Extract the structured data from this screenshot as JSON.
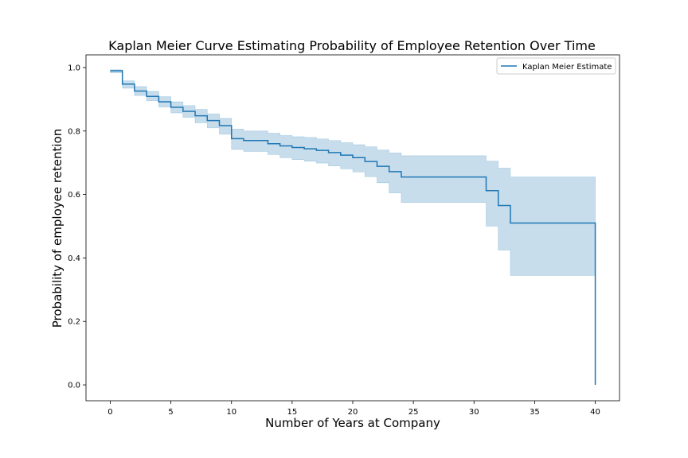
{
  "chart_data": {
    "type": "line",
    "title": "Kaplan Meier Curve Estimating Probability of Employee Retention Over Time",
    "xlabel": "Number of Years at Company",
    "ylabel": "Probability of employee retention",
    "xlim": [
      -2,
      42
    ],
    "ylim": [
      -0.05,
      1.04
    ],
    "x_ticks": [
      0,
      5,
      10,
      15,
      20,
      25,
      30,
      35,
      40
    ],
    "y_ticks": [
      0.0,
      0.2,
      0.4,
      0.6,
      0.8,
      1.0
    ],
    "x_tick_labels": [
      "0",
      "5",
      "10",
      "15",
      "20",
      "25",
      "30",
      "35",
      "40"
    ],
    "y_tick_labels": [
      "0.0",
      "0.2",
      "0.4",
      "0.6",
      "0.8",
      "1.0"
    ],
    "grid": false,
    "legend_position": "top-right",
    "colors": {
      "line": "#1f77b4",
      "band_fill": "#1f77b4",
      "band_opacity": 0.25
    },
    "series": [
      {
        "name": "Kaplan Meier Estimate",
        "step": "post",
        "x": [
          0,
          1,
          2,
          3,
          4,
          5,
          6,
          7,
          8,
          9,
          10,
          11,
          12,
          13,
          14,
          15,
          16,
          17,
          18,
          19,
          20,
          21,
          22,
          23,
          24,
          31,
          32,
          33,
          40
        ],
        "y": [
          0.99,
          0.948,
          0.926,
          0.909,
          0.892,
          0.875,
          0.862,
          0.848,
          0.833,
          0.817,
          0.776,
          0.77,
          0.77,
          0.76,
          0.753,
          0.748,
          0.744,
          0.739,
          0.732,
          0.724,
          0.716,
          0.704,
          0.689,
          0.672,
          0.655,
          0.612,
          0.565,
          0.51,
          0.0
        ],
        "ci_lower": [
          0.983,
          0.935,
          0.912,
          0.895,
          0.876,
          0.857,
          0.843,
          0.826,
          0.81,
          0.79,
          0.742,
          0.736,
          0.736,
          0.726,
          0.716,
          0.71,
          0.705,
          0.699,
          0.69,
          0.681,
          0.671,
          0.656,
          0.637,
          0.605,
          0.575,
          0.5,
          0.425,
          0.345,
          0.0
        ],
        "ci_upper": [
          0.993,
          0.958,
          0.94,
          0.925,
          0.908,
          0.892,
          0.88,
          0.868,
          0.854,
          0.84,
          0.806,
          0.8,
          0.8,
          0.793,
          0.786,
          0.782,
          0.78,
          0.775,
          0.77,
          0.763,
          0.757,
          0.75,
          0.74,
          0.731,
          0.722,
          0.705,
          0.683,
          0.655,
          0.0
        ]
      }
    ]
  }
}
